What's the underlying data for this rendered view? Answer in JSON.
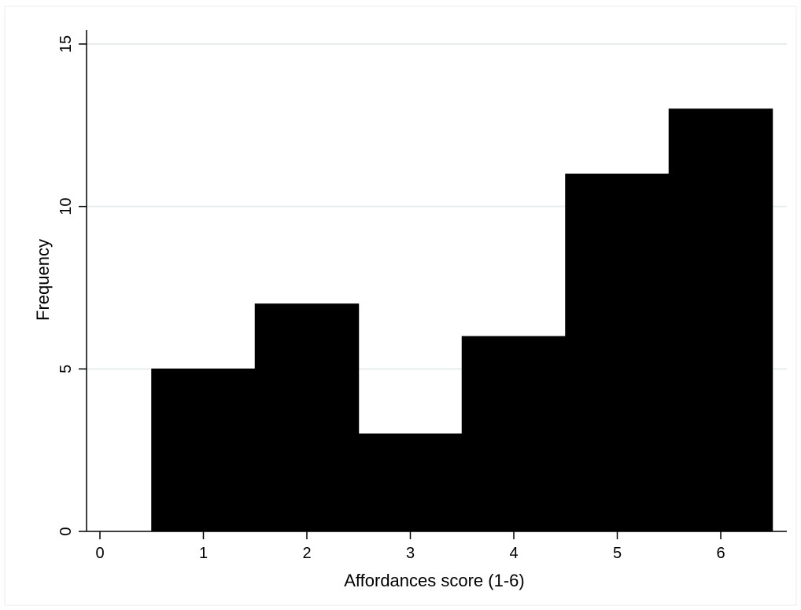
{
  "chart_data": {
    "type": "bar",
    "subtype": "histogram",
    "title": "",
    "xlabel": "Affordances score (1-6)",
    "ylabel": "Frequency",
    "bins": [
      {
        "x_start": 0.5,
        "x_end": 1.5,
        "value": 5
      },
      {
        "x_start": 1.5,
        "x_end": 2.5,
        "value": 7
      },
      {
        "x_start": 2.5,
        "x_end": 3.5,
        "value": 3
      },
      {
        "x_start": 3.5,
        "x_end": 4.5,
        "value": 6
      },
      {
        "x_start": 4.5,
        "x_end": 5.5,
        "value": 11
      },
      {
        "x_start": 5.5,
        "x_end": 6.5,
        "value": 13
      }
    ],
    "xlim": [
      -0.2,
      6.6
    ],
    "ylim": [
      0,
      15
    ],
    "x_ticks": [
      0,
      1,
      2,
      3,
      4,
      5,
      6
    ],
    "y_ticks": [
      0,
      5,
      10,
      15
    ],
    "grid": "horizontal",
    "legend": "none",
    "colors": {
      "bar_fill": "#000000",
      "gridline": "#e6eef0",
      "axis": "#000000",
      "frame_border": "#eeeeee"
    }
  }
}
